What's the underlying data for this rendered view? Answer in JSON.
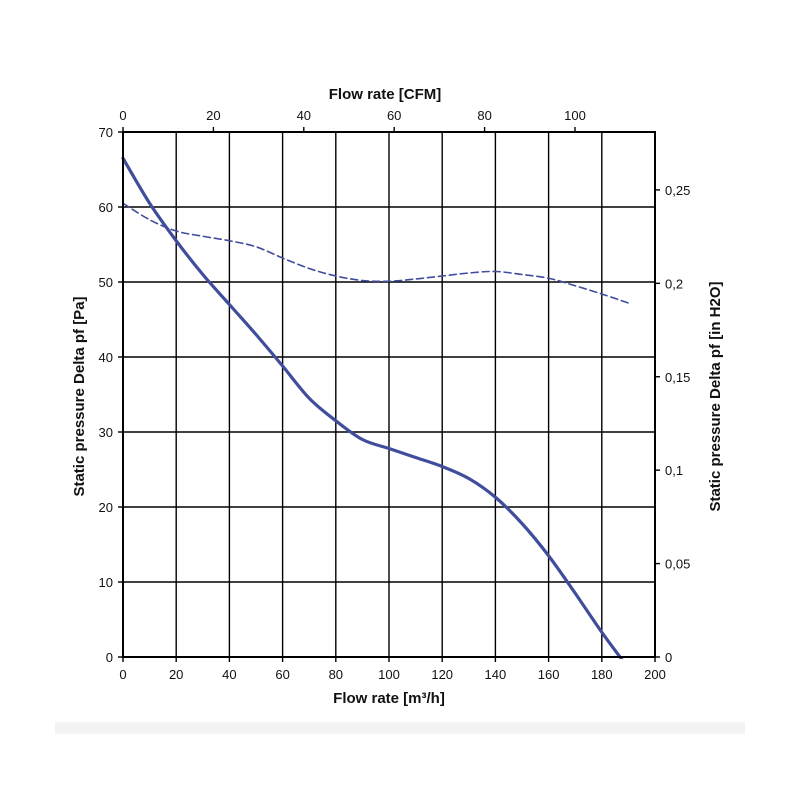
{
  "chart_data": {
    "type": "line",
    "title": "",
    "xlabel": "Flow rate [m³/h]",
    "x2label": "Flow rate [CFM]",
    "ylabel": "Static pressure Delta pf [Pa]",
    "y2label": "Static pressure Delta pf [in H2O]",
    "xlim": [
      0,
      200
    ],
    "ylim": [
      0,
      70
    ],
    "x2lim": [
      0,
      117.7
    ],
    "y2lim": [
      0,
      0.281
    ],
    "x_ticks": [
      "0",
      "20",
      "40",
      "60",
      "80",
      "100",
      "120",
      "140",
      "160",
      "180",
      "200"
    ],
    "y_ticks": [
      "0",
      "10",
      "20",
      "30",
      "40",
      "50",
      "60",
      "70"
    ],
    "x2_ticks": [
      {
        "value": 0,
        "label": "0"
      },
      {
        "value": 20,
        "label": "20"
      },
      {
        "value": 40,
        "label": "40"
      },
      {
        "value": 60,
        "label": "60"
      },
      {
        "value": 80,
        "label": "80"
      },
      {
        "value": 100,
        "label": "100"
      }
    ],
    "y2_ticks": [
      {
        "value": 0,
        "label": "0"
      },
      {
        "value": 0.05,
        "label": "0,05"
      },
      {
        "value": 0.1,
        "label": "0,1"
      },
      {
        "value": 0.15,
        "label": "0,15"
      },
      {
        "value": 0.2,
        "label": "0,2"
      },
      {
        "value": 0.25,
        "label": "0,25"
      }
    ],
    "grid": true,
    "series": [
      {
        "style": "solid",
        "color": "#3f4d9c",
        "x": [
          0,
          10,
          20,
          30,
          40,
          50,
          60,
          70,
          80,
          90,
          100,
          110,
          120,
          130,
          140,
          150,
          160,
          170,
          180,
          190
        ],
        "y": [
          66.5,
          60.5,
          55.5,
          51,
          47,
          43,
          38.8,
          34.5,
          31.5,
          29,
          27.8,
          26.6,
          25.4,
          23.8,
          21.3,
          17.8,
          13.5,
          8.5,
          3.3,
          -1.5
        ]
      },
      {
        "style": "dashed",
        "color": "#3f4d9c",
        "x": [
          0,
          10,
          20,
          30,
          40,
          50,
          60,
          70,
          80,
          90,
          100,
          110,
          120,
          130,
          140,
          150,
          160,
          170,
          180,
          190
        ],
        "y": [
          60.5,
          58.3,
          56.8,
          56.1,
          55.5,
          54.7,
          53.2,
          51.8,
          50.8,
          50.2,
          50.1,
          50.4,
          50.8,
          51.2,
          51.4,
          51,
          50.5,
          49.5,
          48.4,
          47.2
        ]
      }
    ]
  }
}
